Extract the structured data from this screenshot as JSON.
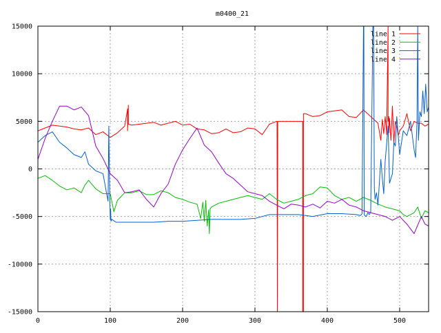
{
  "chart_data": {
    "type": "line",
    "title": "m0400_21",
    "xlabel": "",
    "ylabel": "",
    "xlim": [
      0,
      540
    ],
    "ylim": [
      -15000,
      15000
    ],
    "x_ticks": [
      "0",
      "100",
      "200",
      "300",
      "400",
      "500"
    ],
    "y_ticks": [
      "-15000",
      "-10000",
      "-5000",
      "0",
      "5000",
      "10000",
      "15000"
    ],
    "grid": true,
    "legend_position": "top-right",
    "series": [
      {
        "name": "line 1",
        "color": "#ff0000",
        "x": [
          0,
          10,
          20,
          30,
          40,
          50,
          60,
          70,
          80,
          90,
          100,
          110,
          120,
          124,
          124,
          125,
          125,
          130,
          140,
          150,
          160,
          170,
          180,
          190,
          200,
          210,
          220,
          230,
          240,
          250,
          260,
          270,
          280,
          290,
          300,
          310,
          320,
          330,
          330.5,
          331,
          331,
          331.5,
          332,
          340,
          350,
          360,
          366,
          366,
          367,
          367,
          370,
          380,
          390,
          400,
          410,
          420,
          430,
          440,
          450,
          460,
          470,
          474,
          476,
          478,
          480,
          482,
          484,
          484,
          485,
          485,
          486,
          488,
          490,
          492,
          494,
          496,
          498,
          500,
          505,
          510,
          515,
          520,
          525,
          530,
          535,
          540
        ],
        "y": [
          4000,
          4300,
          4600,
          4500,
          4400,
          4200,
          4100,
          4300,
          3600,
          3900,
          3300,
          3800,
          4500,
          6300,
          4000,
          6700,
          4700,
          4600,
          4700,
          4800,
          4900,
          4600,
          4800,
          5000,
          4600,
          4700,
          4200,
          4100,
          3700,
          3800,
          4200,
          3800,
          3900,
          4300,
          4200,
          3600,
          4700,
          5000,
          5000,
          -15000,
          -15000,
          5000,
          5000,
          5000,
          5000,
          5000,
          5000,
          -15000,
          -15000,
          5800,
          5800,
          5500,
          5600,
          6000,
          6100,
          6200,
          5500,
          5400,
          6200,
          5500,
          4800,
          3000,
          5200,
          3700,
          5500,
          3600,
          15000,
          5000,
          5500,
          3800,
          5300,
          3000,
          6600,
          2800,
          5000,
          4500,
          3500,
          4000,
          4500,
          5800,
          4000,
          5000,
          4800,
          4800,
          4500,
          4700
        ]
      },
      {
        "name": "line 2",
        "color": "#00c000",
        "x": [
          0,
          10,
          20,
          30,
          40,
          50,
          60,
          65,
          70,
          80,
          90,
          100,
          105,
          110,
          120,
          130,
          140,
          150,
          160,
          170,
          180,
          190,
          200,
          210,
          220,
          225,
          228,
          230,
          232,
          234,
          236,
          237,
          238,
          240,
          250,
          260,
          270,
          280,
          290,
          300,
          310,
          320,
          330,
          340,
          350,
          360,
          370,
          380,
          390,
          400,
          410,
          420,
          430,
          440,
          450,
          460,
          470,
          480,
          490,
          500,
          505,
          510,
          520,
          525,
          530,
          535,
          540
        ],
        "y": [
          -1000,
          -700,
          -1200,
          -1800,
          -2200,
          -2000,
          -2500,
          -1700,
          -1200,
          -2100,
          -2600,
          -2600,
          -4500,
          -3300,
          -2500,
          -2500,
          -2300,
          -2700,
          -2700,
          -2300,
          -2500,
          -3000,
          -3200,
          -3500,
          -3700,
          -5200,
          -3500,
          -5500,
          -3300,
          -6000,
          -4300,
          -6800,
          -4200,
          -4000,
          -3600,
          -3400,
          -3200,
          -3000,
          -2800,
          -3000,
          -3200,
          -2600,
          -3200,
          -3600,
          -3400,
          -3200,
          -2800,
          -2600,
          -1900,
          -2000,
          -2800,
          -3200,
          -3000,
          -3400,
          -3000,
          -3300,
          -3700,
          -4000,
          -4200,
          -4400,
          -4800,
          -5000,
          -4600,
          -4000,
          -5200,
          -4400,
          -4600
        ]
      },
      {
        "name": "line 3",
        "color": "#0060d0",
        "x": [
          0,
          10,
          20,
          30,
          40,
          50,
          60,
          65,
          70,
          80,
          90,
          95,
          97,
          98,
          99,
          100,
          100.5,
          101,
          102,
          104,
          106,
          108,
          110,
          120,
          140,
          160,
          180,
          200,
          220,
          240,
          260,
          280,
          300,
          320,
          340,
          360,
          380,
          400,
          420,
          440,
          446,
          448,
          450,
          450.5,
          451,
          452,
          454,
          456,
          458,
          460,
          463,
          464,
          465,
          466,
          468,
          470,
          474,
          476,
          478,
          480,
          484,
          486,
          490,
          492,
          494,
          496,
          500,
          505,
          510,
          515,
          520,
          522,
          524,
          525,
          526,
          528,
          530,
          532,
          534,
          536,
          538,
          540
        ],
        "y": [
          2800,
          3500,
          3900,
          2800,
          2200,
          1500,
          1200,
          1800,
          500,
          -200,
          -500,
          -2600,
          -3400,
          4500,
          -1500,
          -5300,
          -4200,
          -5500,
          -5300,
          -5400,
          -5500,
          -5600,
          -5600,
          -5600,
          -5600,
          -5600,
          -5500,
          -5500,
          -5400,
          -5300,
          -5300,
          -5300,
          -5200,
          -4800,
          -4800,
          -4800,
          -5000,
          -4700,
          -4700,
          -4800,
          -4900,
          -4700,
          15000,
          15000,
          -4800,
          -4900,
          -5000,
          -4600,
          -4800,
          -4500,
          15000,
          15000,
          -2000,
          -3200,
          -2500,
          -3800,
          1000,
          -1000,
          -2600,
          800,
          4500,
          -1500,
          -500,
          2800,
          2400,
          5500,
          1500,
          4000,
          3500,
          5000,
          2000,
          1200,
          5000,
          15000,
          3000,
          6000,
          5500,
          8200,
          5800,
          8900,
          6000,
          6500
        ]
      },
      {
        "name": "line 4",
        "color": "#9400d3",
        "x": [
          0,
          10,
          20,
          30,
          40,
          50,
          60,
          70,
          80,
          90,
          100,
          110,
          120,
          130,
          140,
          150,
          160,
          170,
          180,
          190,
          200,
          210,
          220,
          230,
          240,
          250,
          260,
          270,
          280,
          290,
          300,
          310,
          320,
          330,
          340,
          350,
          360,
          370,
          380,
          390,
          400,
          410,
          420,
          430,
          440,
          450,
          460,
          470,
          480,
          490,
          500,
          510,
          520,
          530,
          535,
          540
        ],
        "y": [
          1000,
          3200,
          5000,
          6600,
          6600,
          6200,
          6500,
          5600,
          2400,
          1100,
          -500,
          -1200,
          -2500,
          -2400,
          -2200,
          -3200,
          -4000,
          -2600,
          -1600,
          500,
          2000,
          3200,
          4300,
          2500,
          1800,
          600,
          -500,
          -1000,
          -1700,
          -2400,
          -2600,
          -2800,
          -3400,
          -3800,
          -4200,
          -3700,
          -3800,
          -4000,
          -3700,
          -4100,
          -3400,
          -3600,
          -3200,
          -3800,
          -4000,
          -4400,
          -4600,
          -4800,
          -5000,
          -5400,
          -5000,
          -5800,
          -6800,
          -5000,
          -5800,
          -6000
        ]
      }
    ]
  }
}
